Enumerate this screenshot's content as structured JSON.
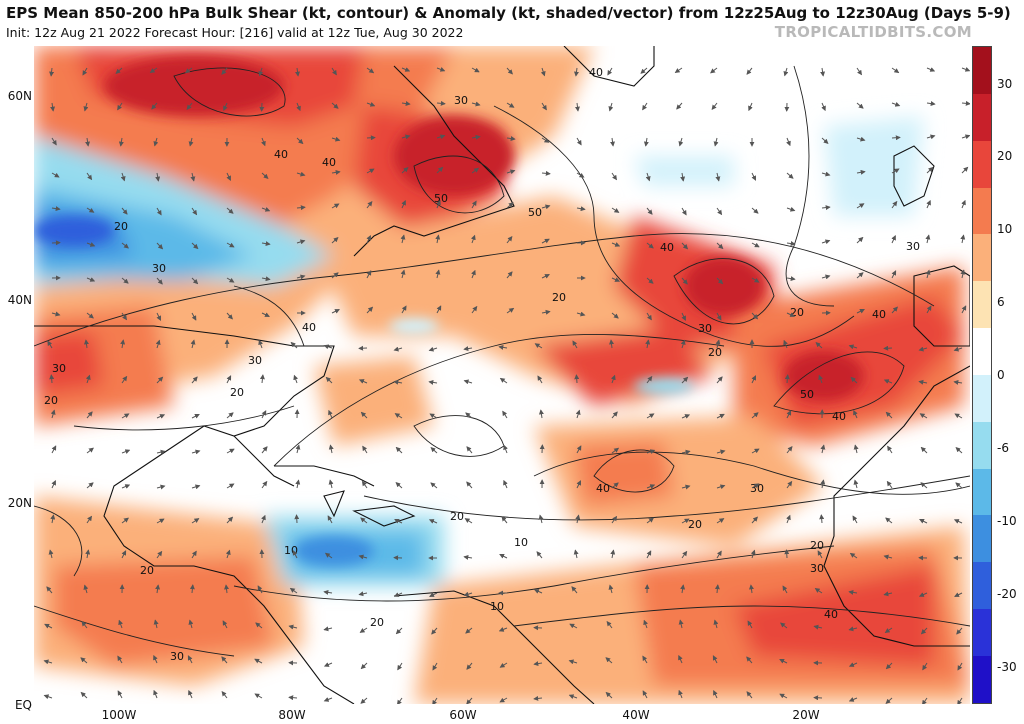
{
  "header": {
    "title": "EPS Mean 850-200 hPa Bulk Shear (kt, contour) & Anomaly (kt, shaded/vector) from 12z25Aug to 12z30Aug (Days 5-9)",
    "subtitle": "Init: 12z Aug 21 2022   Forecast Hour: [216]   valid at 12z Tue, Aug 30 2022",
    "brand": "TROPICALTIDBITS.COM"
  },
  "axes": {
    "lat_labels": [
      "60N",
      "40N",
      "20N",
      "EQ"
    ],
    "lon_labels": [
      "100W",
      "80W",
      "60W",
      "40W",
      "20W"
    ]
  },
  "colorbar": {
    "labels": [
      "30",
      "20",
      "10",
      "6",
      "0",
      "-6",
      "-10",
      "-20",
      "-30"
    ],
    "colors": [
      "#a3101c",
      "#c8202a",
      "#e8463b",
      "#f47b4f",
      "#fbb07a",
      "#fde3b3",
      "#ffffff",
      "#d2f1fb",
      "#96dcef",
      "#5cb9e8",
      "#3d8fe0",
      "#2f5fdc",
      "#2a32d8",
      "#1f10c8"
    ]
  },
  "contour_labels": [
    "30",
    "40",
    "40",
    "50",
    "50",
    "40",
    "30",
    "20",
    "40",
    "30",
    "20",
    "20",
    "30",
    "40",
    "50",
    "40",
    "30",
    "20",
    "10",
    "20",
    "40",
    "30",
    "20",
    "40",
    "30",
    "20",
    "10",
    "10",
    "20",
    "30",
    "40",
    "30",
    "20",
    "20",
    "20"
  ]
}
